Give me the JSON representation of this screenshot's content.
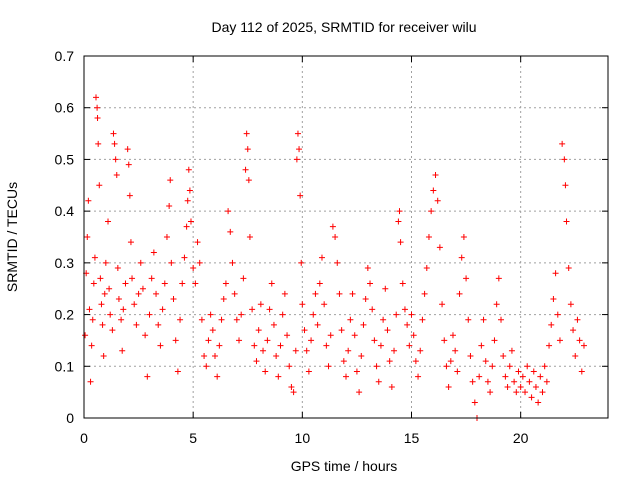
{
  "chart_data": {
    "type": "scatter",
    "title": "Day 112 of 2025, SRMTID for receiver wilu",
    "xlabel": "GPS time / hours",
    "ylabel": "SRMTID / TECUs",
    "xlim": [
      0,
      24
    ],
    "ylim": [
      0,
      0.7
    ],
    "x_ticks": [
      0,
      5,
      10,
      15,
      20
    ],
    "x_tick_labels": [
      "0",
      "5",
      "10",
      "15",
      "20"
    ],
    "y_ticks": [
      0,
      0.1,
      0.2,
      0.3,
      0.4,
      0.5,
      0.6,
      0.7
    ],
    "y_tick_labels": [
      "0",
      "0.1",
      "0.2",
      "0.3",
      "0.4",
      "0.5",
      "0.6",
      "0.7"
    ],
    "grid": true,
    "marker": "+",
    "marker_color": "#ff0000",
    "series": [
      {
        "name": "SRMTID",
        "points": [
          [
            0.05,
            0.16
          ],
          [
            0.1,
            0.28
          ],
          [
            0.15,
            0.35
          ],
          [
            0.2,
            0.42
          ],
          [
            0.25,
            0.21
          ],
          [
            0.3,
            0.07
          ],
          [
            0.35,
            0.14
          ],
          [
            0.4,
            0.19
          ],
          [
            0.45,
            0.26
          ],
          [
            0.5,
            0.31
          ],
          [
            0.55,
            0.62
          ],
          [
            0.6,
            0.6
          ],
          [
            0.62,
            0.58
          ],
          [
            0.65,
            0.53
          ],
          [
            0.7,
            0.45
          ],
          [
            0.75,
            0.27
          ],
          [
            0.8,
            0.22
          ],
          [
            0.85,
            0.18
          ],
          [
            0.9,
            0.12
          ],
          [
            0.95,
            0.24
          ],
          [
            1.0,
            0.3
          ],
          [
            1.1,
            0.38
          ],
          [
            1.15,
            0.25
          ],
          [
            1.2,
            0.2
          ],
          [
            1.3,
            0.17
          ],
          [
            1.35,
            0.55
          ],
          [
            1.4,
            0.53
          ],
          [
            1.45,
            0.5
          ],
          [
            1.5,
            0.47
          ],
          [
            1.55,
            0.29
          ],
          [
            1.6,
            0.23
          ],
          [
            1.7,
            0.19
          ],
          [
            1.75,
            0.13
          ],
          [
            1.8,
            0.21
          ],
          [
            1.9,
            0.26
          ],
          [
            2.0,
            0.52
          ],
          [
            2.05,
            0.49
          ],
          [
            2.1,
            0.43
          ],
          [
            2.15,
            0.34
          ],
          [
            2.2,
            0.27
          ],
          [
            2.3,
            0.22
          ],
          [
            2.4,
            0.18
          ],
          [
            2.5,
            0.24
          ],
          [
            2.6,
            0.3
          ],
          [
            2.7,
            0.25
          ],
          [
            2.8,
            0.16
          ],
          [
            2.9,
            0.08
          ],
          [
            3.0,
            0.2
          ],
          [
            3.1,
            0.27
          ],
          [
            3.2,
            0.32
          ],
          [
            3.3,
            0.24
          ],
          [
            3.4,
            0.18
          ],
          [
            3.5,
            0.14
          ],
          [
            3.6,
            0.21
          ],
          [
            3.7,
            0.26
          ],
          [
            3.8,
            0.35
          ],
          [
            3.9,
            0.41
          ],
          [
            3.95,
            0.46
          ],
          [
            4.0,
            0.3
          ],
          [
            4.1,
            0.23
          ],
          [
            4.2,
            0.15
          ],
          [
            4.3,
            0.09
          ],
          [
            4.4,
            0.19
          ],
          [
            4.5,
            0.26
          ],
          [
            4.6,
            0.31
          ],
          [
            4.7,
            0.37
          ],
          [
            4.75,
            0.42
          ],
          [
            4.8,
            0.48
          ],
          [
            4.85,
            0.44
          ],
          [
            4.9,
            0.38
          ],
          [
            5.0,
            0.29
          ],
          [
            5.1,
            0.26
          ],
          [
            5.2,
            0.34
          ],
          [
            5.3,
            0.3
          ],
          [
            5.4,
            0.19
          ],
          [
            5.5,
            0.12
          ],
          [
            5.6,
            0.1
          ],
          [
            5.7,
            0.15
          ],
          [
            5.8,
            0.2
          ],
          [
            5.9,
            0.17
          ],
          [
            6.0,
            0.12
          ],
          [
            6.1,
            0.08
          ],
          [
            6.2,
            0.14
          ],
          [
            6.3,
            0.19
          ],
          [
            6.4,
            0.23
          ],
          [
            6.5,
            0.26
          ],
          [
            6.6,
            0.4
          ],
          [
            6.7,
            0.36
          ],
          [
            6.8,
            0.3
          ],
          [
            6.9,
            0.24
          ],
          [
            7.0,
            0.19
          ],
          [
            7.1,
            0.15
          ],
          [
            7.2,
            0.2
          ],
          [
            7.3,
            0.27
          ],
          [
            7.4,
            0.48
          ],
          [
            7.45,
            0.55
          ],
          [
            7.5,
            0.52
          ],
          [
            7.55,
            0.46
          ],
          [
            7.6,
            0.35
          ],
          [
            7.7,
            0.21
          ],
          [
            7.8,
            0.14
          ],
          [
            7.9,
            0.11
          ],
          [
            8.0,
            0.17
          ],
          [
            8.1,
            0.22
          ],
          [
            8.2,
            0.13
          ],
          [
            8.3,
            0.09
          ],
          [
            8.4,
            0.15
          ],
          [
            8.5,
            0.21
          ],
          [
            8.6,
            0.26
          ],
          [
            8.7,
            0.18
          ],
          [
            8.8,
            0.12
          ],
          [
            8.9,
            0.08
          ],
          [
            9.0,
            0.14
          ],
          [
            9.1,
            0.2
          ],
          [
            9.2,
            0.24
          ],
          [
            9.3,
            0.16
          ],
          [
            9.4,
            0.1
          ],
          [
            9.5,
            0.06
          ],
          [
            9.6,
            0.05
          ],
          [
            9.7,
            0.13
          ],
          [
            9.75,
            0.5
          ],
          [
            9.8,
            0.55
          ],
          [
            9.85,
            0.52
          ],
          [
            9.9,
            0.43
          ],
          [
            9.95,
            0.3
          ],
          [
            10.0,
            0.22
          ],
          [
            10.1,
            0.17
          ],
          [
            10.2,
            0.13
          ],
          [
            10.3,
            0.09
          ],
          [
            10.4,
            0.15
          ],
          [
            10.5,
            0.2
          ],
          [
            10.6,
            0.24
          ],
          [
            10.7,
            0.18
          ],
          [
            10.8,
            0.26
          ],
          [
            10.9,
            0.31
          ],
          [
            11.0,
            0.22
          ],
          [
            11.1,
            0.14
          ],
          [
            11.2,
            0.1
          ],
          [
            11.3,
            0.16
          ],
          [
            11.4,
            0.37
          ],
          [
            11.5,
            0.35
          ],
          [
            11.6,
            0.3
          ],
          [
            11.7,
            0.24
          ],
          [
            11.8,
            0.17
          ],
          [
            11.9,
            0.11
          ],
          [
            12.0,
            0.08
          ],
          [
            12.1,
            0.13
          ],
          [
            12.2,
            0.19
          ],
          [
            12.3,
            0.24
          ],
          [
            12.4,
            0.16
          ],
          [
            12.5,
            0.09
          ],
          [
            12.6,
            0.05
          ],
          [
            12.7,
            0.12
          ],
          [
            12.8,
            0.18
          ],
          [
            12.9,
            0.23
          ],
          [
            13.0,
            0.29
          ],
          [
            13.1,
            0.26
          ],
          [
            13.2,
            0.21
          ],
          [
            13.3,
            0.15
          ],
          [
            13.4,
            0.1
          ],
          [
            13.5,
            0.07
          ],
          [
            13.6,
            0.14
          ],
          [
            13.7,
            0.19
          ],
          [
            13.8,
            0.25
          ],
          [
            13.9,
            0.17
          ],
          [
            14.0,
            0.11
          ],
          [
            14.1,
            0.06
          ],
          [
            14.2,
            0.13
          ],
          [
            14.3,
            0.2
          ],
          [
            14.4,
            0.38
          ],
          [
            14.45,
            0.4
          ],
          [
            14.5,
            0.34
          ],
          [
            14.6,
            0.26
          ],
          [
            14.7,
            0.21
          ],
          [
            14.8,
            0.18
          ],
          [
            14.9,
            0.14
          ],
          [
            15.0,
            0.2
          ],
          [
            15.1,
            0.16
          ],
          [
            15.2,
            0.11
          ],
          [
            15.3,
            0.08
          ],
          [
            15.4,
            0.13
          ],
          [
            15.5,
            0.19
          ],
          [
            15.6,
            0.24
          ],
          [
            15.7,
            0.29
          ],
          [
            15.8,
            0.35
          ],
          [
            15.9,
            0.4
          ],
          [
            16.0,
            0.44
          ],
          [
            16.1,
            0.47
          ],
          [
            16.2,
            0.42
          ],
          [
            16.3,
            0.33
          ],
          [
            16.4,
            0.22
          ],
          [
            16.5,
            0.15
          ],
          [
            16.6,
            0.1
          ],
          [
            16.7,
            0.06
          ],
          [
            16.8,
            0.11
          ],
          [
            16.9,
            0.16
          ],
          [
            17.0,
            0.13
          ],
          [
            17.1,
            0.09
          ],
          [
            17.2,
            0.24
          ],
          [
            17.3,
            0.31
          ],
          [
            17.4,
            0.35
          ],
          [
            17.5,
            0.27
          ],
          [
            17.6,
            0.19
          ],
          [
            17.7,
            0.12
          ],
          [
            17.8,
            0.07
          ],
          [
            17.9,
            0.03
          ],
          [
            18.0,
            0.0
          ],
          [
            18.1,
            0.08
          ],
          [
            18.2,
            0.14
          ],
          [
            18.3,
            0.19
          ],
          [
            18.4,
            0.11
          ],
          [
            18.5,
            0.07
          ],
          [
            18.6,
            0.05
          ],
          [
            18.7,
            0.1
          ],
          [
            18.8,
            0.15
          ],
          [
            18.9,
            0.22
          ],
          [
            19.0,
            0.27
          ],
          [
            19.1,
            0.19
          ],
          [
            19.2,
            0.12
          ],
          [
            19.3,
            0.08
          ],
          [
            19.4,
            0.06
          ],
          [
            19.5,
            0.1
          ],
          [
            19.6,
            0.13
          ],
          [
            19.7,
            0.07
          ],
          [
            19.8,
            0.05
          ],
          [
            19.9,
            0.09
          ],
          [
            20.0,
            0.06
          ],
          [
            20.1,
            0.08
          ],
          [
            20.2,
            0.05
          ],
          [
            20.3,
            0.1
          ],
          [
            20.4,
            0.07
          ],
          [
            20.5,
            0.04
          ],
          [
            20.6,
            0.09
          ],
          [
            20.7,
            0.06
          ],
          [
            20.8,
            0.03
          ],
          [
            20.9,
            0.08
          ],
          [
            21.0,
            0.05
          ],
          [
            21.1,
            0.1
          ],
          [
            21.2,
            0.07
          ],
          [
            21.3,
            0.14
          ],
          [
            21.4,
            0.18
          ],
          [
            21.5,
            0.23
          ],
          [
            21.6,
            0.28
          ],
          [
            21.7,
            0.2
          ],
          [
            21.8,
            0.15
          ],
          [
            21.9,
            0.53
          ],
          [
            22.0,
            0.5
          ],
          [
            22.05,
            0.45
          ],
          [
            22.1,
            0.38
          ],
          [
            22.2,
            0.29
          ],
          [
            22.3,
            0.22
          ],
          [
            22.4,
            0.17
          ],
          [
            22.5,
            0.12
          ],
          [
            22.6,
            0.19
          ],
          [
            22.7,
            0.15
          ],
          [
            22.8,
            0.09
          ],
          [
            22.9,
            0.14
          ]
        ]
      }
    ]
  }
}
